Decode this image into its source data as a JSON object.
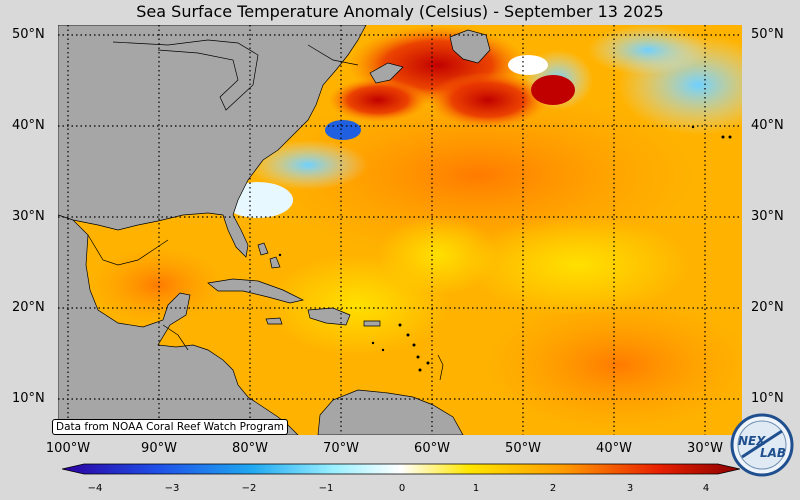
{
  "title": "Sea Surface Temperature Anomaly (Celsius) - September 13 2025",
  "credit": "Data from NOAA Coral Reef Watch Program",
  "lat_labels": [
    "50°N",
    "40°N",
    "30°N",
    "20°N",
    "10°N"
  ],
  "lon_labels": [
    "100°W",
    "90°W",
    "80°W",
    "70°W",
    "60°W",
    "50°W",
    "40°W",
    "30°W"
  ],
  "colorbar": {
    "ticks": [
      "−4",
      "−3",
      "−2",
      "−1",
      "0",
      "1",
      "2",
      "3",
      "4"
    ],
    "range": [
      -4,
      4
    ],
    "colors": [
      "#2b00a0",
      "#1f4fe8",
      "#20a8f0",
      "#9af0ff",
      "#ffffff",
      "#ffe600",
      "#ff9a00",
      "#e82000",
      "#8b0000"
    ]
  },
  "logo_text": "NEXLAB",
  "colors": {
    "land": "#a6a6a6",
    "warm": "#ffb000",
    "hot": "#d81800",
    "cool": "#bfe9ff"
  }
}
